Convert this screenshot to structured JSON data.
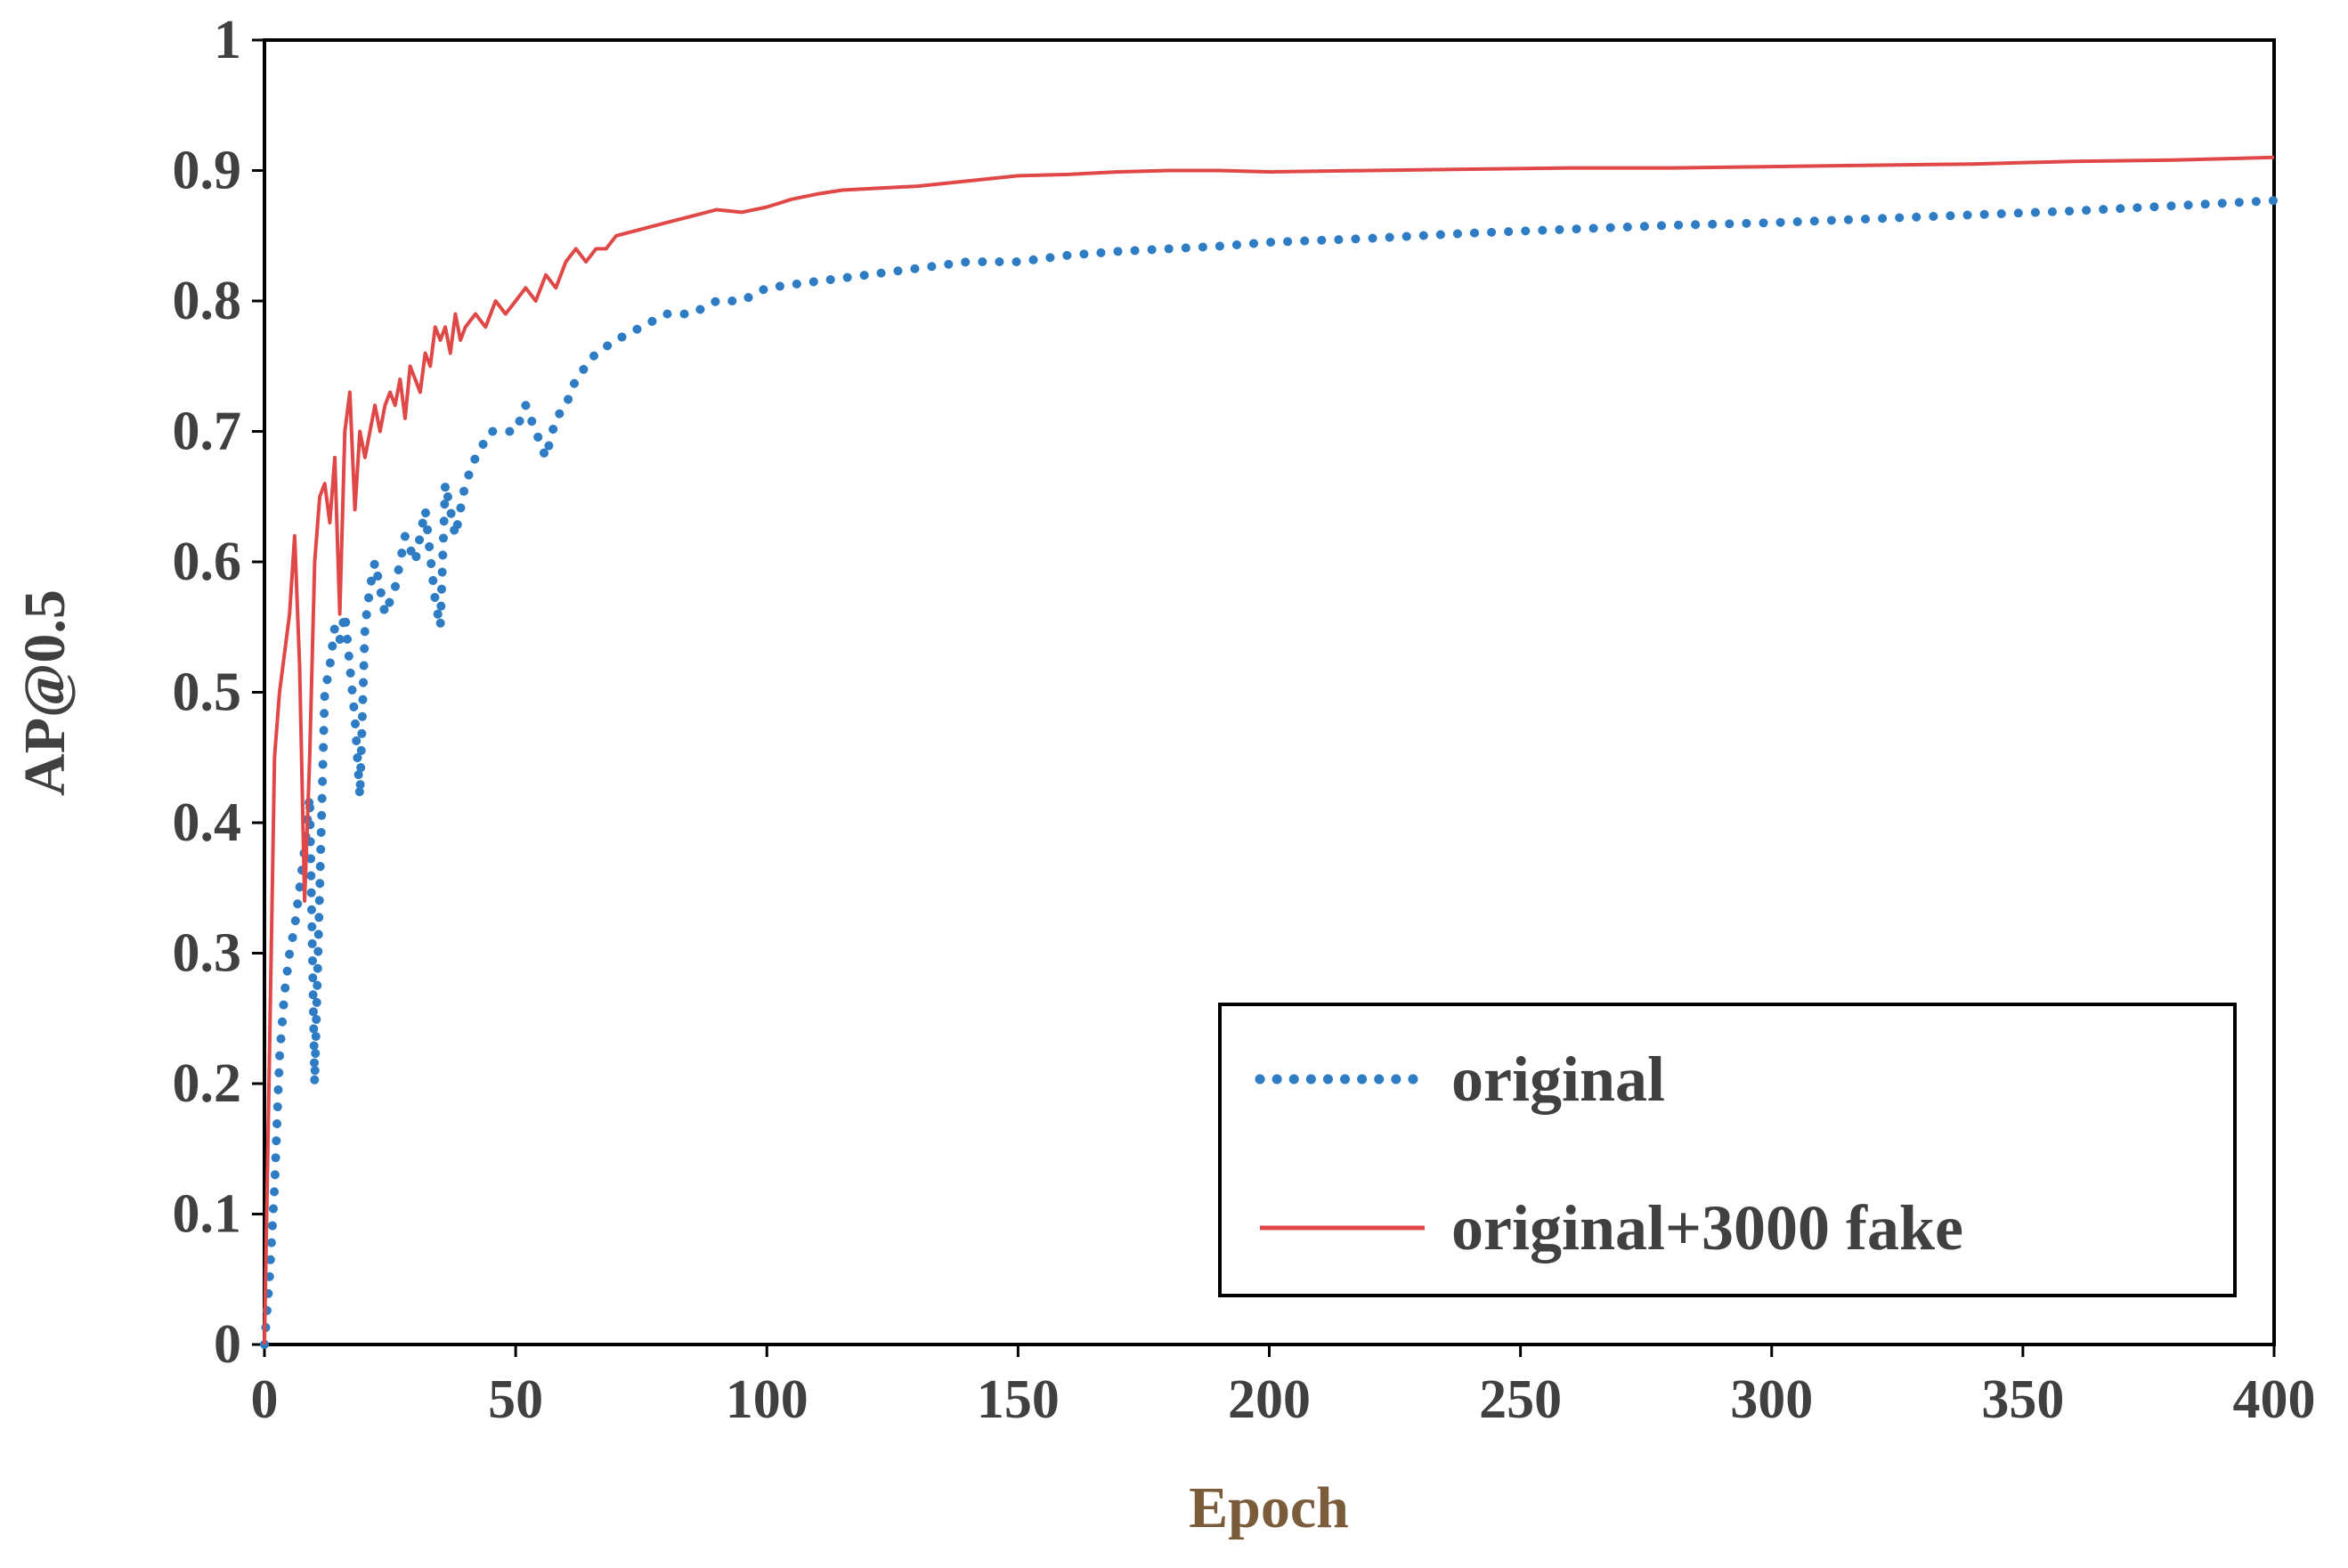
{
  "chart_data": {
    "type": "line",
    "title": "",
    "xlabel": "Epoch",
    "ylabel": "AP@0.5",
    "xlim": [
      0,
      400
    ],
    "ylim": [
      0,
      1
    ],
    "xticks": [
      0,
      50,
      100,
      150,
      200,
      250,
      300,
      350,
      400
    ],
    "xtick_labels": [
      "0",
      "50",
      "100",
      "150",
      "200",
      "250",
      "300",
      "350",
      "400"
    ],
    "yticks": [
      0,
      0.1,
      0.2,
      0.3,
      0.4,
      0.5,
      0.6,
      0.7,
      0.8,
      0.9,
      1
    ],
    "ytick_labels": [
      "0",
      "0.1",
      "0.2",
      "0.3",
      "0.4",
      "0.5",
      "0.6",
      "0.7",
      "0.8",
      "0.9",
      "1"
    ],
    "grid": false,
    "legend_position": "bottom-right",
    "series": [
      {
        "name": "original",
        "color": "#2E7CC4",
        "style": "dotted",
        "x": [
          0,
          1,
          2,
          3,
          4,
          5,
          6,
          7,
          8,
          9,
          10,
          11,
          12,
          13,
          14,
          15,
          16,
          17,
          18,
          19,
          20,
          21,
          22,
          24,
          26,
          28,
          30,
          32,
          34,
          35,
          36,
          37,
          38,
          40,
          42,
          45,
          48,
          50,
          52,
          54,
          56,
          58,
          60,
          62,
          64,
          66,
          70,
          75,
          80,
          85,
          90,
          95,
          100,
          110,
          120,
          130,
          140,
          150,
          160,
          170,
          180,
          190,
          200,
          220,
          240,
          260,
          280,
          300,
          320,
          340,
          360,
          380,
          400
        ],
        "y": [
          0,
          0.05,
          0.12,
          0.22,
          0.27,
          0.3,
          0.32,
          0.35,
          0.38,
          0.42,
          0.2,
          0.35,
          0.5,
          0.52,
          0.55,
          0.54,
          0.56,
          0.52,
          0.48,
          0.42,
          0.55,
          0.58,
          0.6,
          0.56,
          0.58,
          0.62,
          0.6,
          0.64,
          0.57,
          0.55,
          0.66,
          0.64,
          0.62,
          0.66,
          0.68,
          0.7,
          0.7,
          0.7,
          0.72,
          0.7,
          0.68,
          0.71,
          0.72,
          0.74,
          0.75,
          0.76,
          0.77,
          0.78,
          0.79,
          0.79,
          0.8,
          0.8,
          0.81,
          0.815,
          0.82,
          0.825,
          0.83,
          0.83,
          0.835,
          0.838,
          0.84,
          0.842,
          0.845,
          0.848,
          0.852,
          0.855,
          0.858,
          0.86,
          0.863,
          0.866,
          0.869,
          0.873,
          0.877
        ]
      },
      {
        "name": "original+3000 fake",
        "color": "#E04848",
        "style": "solid",
        "x": [
          0,
          1,
          2,
          3,
          4,
          5,
          6,
          7,
          8,
          9,
          10,
          11,
          12,
          13,
          14,
          15,
          16,
          17,
          18,
          19,
          20,
          21,
          22,
          23,
          24,
          25,
          26,
          27,
          28,
          29,
          30,
          31,
          32,
          33,
          34,
          35,
          36,
          37,
          38,
          39,
          40,
          42,
          44,
          46,
          48,
          50,
          52,
          54,
          56,
          58,
          60,
          62,
          64,
          66,
          68,
          70,
          75,
          80,
          85,
          90,
          95,
          100,
          105,
          110,
          115,
          120,
          130,
          140,
          150,
          160,
          170,
          180,
          190,
          200,
          220,
          240,
          260,
          280,
          300,
          320,
          340,
          360,
          380,
          400
        ],
        "y": [
          0,
          0.22,
          0.45,
          0.5,
          0.53,
          0.56,
          0.62,
          0.52,
          0.34,
          0.45,
          0.6,
          0.65,
          0.66,
          0.63,
          0.68,
          0.56,
          0.7,
          0.73,
          0.64,
          0.7,
          0.68,
          0.7,
          0.72,
          0.7,
          0.72,
          0.73,
          0.72,
          0.74,
          0.71,
          0.75,
          0.74,
          0.73,
          0.76,
          0.75,
          0.78,
          0.77,
          0.78,
          0.76,
          0.79,
          0.77,
          0.78,
          0.79,
          0.78,
          0.8,
          0.79,
          0.8,
          0.81,
          0.8,
          0.82,
          0.81,
          0.83,
          0.84,
          0.83,
          0.84,
          0.84,
          0.85,
          0.855,
          0.86,
          0.865,
          0.87,
          0.868,
          0.872,
          0.878,
          0.882,
          0.885,
          0.886,
          0.888,
          0.892,
          0.896,
          0.897,
          0.899,
          0.9,
          0.9,
          0.899,
          0.9,
          0.901,
          0.902,
          0.902,
          0.903,
          0.904,
          0.905,
          0.907,
          0.908,
          0.91
        ]
      }
    ]
  }
}
